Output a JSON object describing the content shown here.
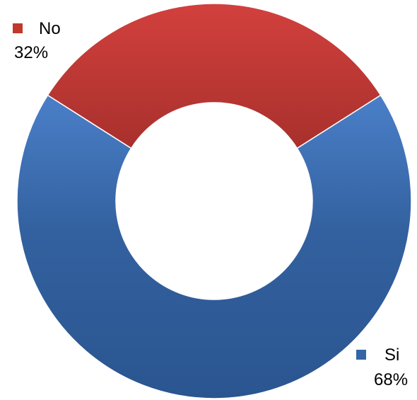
{
  "chart_data": {
    "type": "pie",
    "variant": "donut",
    "title": "",
    "slices": [
      {
        "name": "No",
        "value": 32,
        "label": "32%",
        "color": "#c0392b"
      },
      {
        "name": "Si",
        "value": 68,
        "label": "68%",
        "color": "#3465a4"
      }
    ],
    "legend": "inline-labels"
  }
}
